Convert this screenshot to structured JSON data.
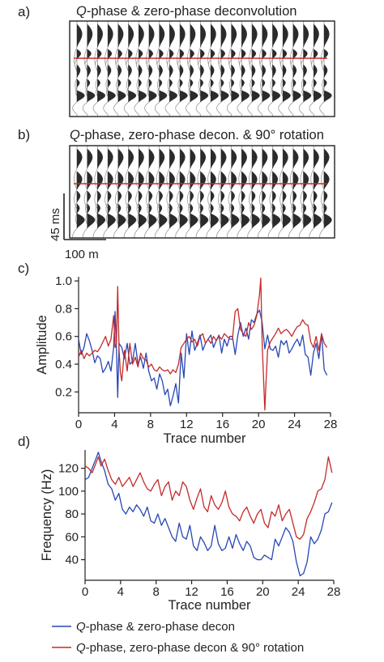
{
  "colors": {
    "blue": "#2747b5",
    "red": "#c42a2a",
    "wiggle": "#2b2b2b",
    "trace_line": "#9a9a9a",
    "frame": "#222222"
  },
  "panel_a": {
    "letter": "a)",
    "title_q": "Q",
    "title_rest": "-phase & zero-phase deconvolution"
  },
  "panel_b": {
    "letter": "b)",
    "title_q": "Q",
    "title_rest": "-phase, zero-phase decon. & 90° rotation",
    "time_scale_label": "45 ms",
    "distance_scale_label": "100 m"
  },
  "legend": {
    "blue_q": "Q",
    "blue_rest": "-phase & zero-phase decon",
    "red_q": "Q",
    "red_rest": "-phase, zero-phase decon & 90° rotation"
  },
  "chart_data": [
    {
      "id": "c",
      "letter": "c)",
      "type": "line",
      "xlabel": "Trace number",
      "ylabel": "Amplitude",
      "xlim": [
        0,
        28
      ],
      "ylim": [
        0.05,
        1.03
      ],
      "xticks": [
        0,
        4,
        8,
        12,
        16,
        20,
        24,
        28
      ],
      "yticks": [
        0.2,
        0.4,
        0.6,
        0.8,
        1.0
      ],
      "ytick_labels": [
        "0.2",
        "0.4",
        "0.6",
        "0.8",
        "1.0"
      ],
      "series": [
        {
          "name": "Q-phase & zero-phase decon",
          "color_key": "blue",
          "x": [
            0,
            0.3,
            0.6,
            0.9,
            1.2,
            1.5,
            1.8,
            2.1,
            2.4,
            2.7,
            3.0,
            3.3,
            3.6,
            3.9,
            4.05,
            4.2,
            4.35,
            4.5,
            4.8,
            5.1,
            5.4,
            5.7,
            6.0,
            6.3,
            6.6,
            6.9,
            7.2,
            7.5,
            7.8,
            8.1,
            8.4,
            8.7,
            9.0,
            9.3,
            9.6,
            9.9,
            10.2,
            10.5,
            10.8,
            11.1,
            11.4,
            11.7,
            12.0,
            12.3,
            12.6,
            12.9,
            13.2,
            13.5,
            13.8,
            14.1,
            14.4,
            14.7,
            15.0,
            15.3,
            15.6,
            15.9,
            16.2,
            16.5,
            16.8,
            17.1,
            17.4,
            17.7,
            18.0,
            18.3,
            18.6,
            18.9,
            19.2,
            19.5,
            19.8,
            20.1,
            20.4,
            20.7,
            21.0,
            21.3,
            21.6,
            21.9,
            22.2,
            22.5,
            22.8,
            23.1,
            23.4,
            23.7,
            24.0,
            24.3,
            24.6,
            24.9,
            25.2,
            25.5,
            25.8,
            26.1,
            26.4,
            26.7,
            27.0,
            27.3,
            27.6
          ],
          "y": [
            0.58,
            0.47,
            0.52,
            0.62,
            0.57,
            0.5,
            0.41,
            0.46,
            0.44,
            0.34,
            0.37,
            0.42,
            0.35,
            0.52,
            0.78,
            0.52,
            0.16,
            0.55,
            0.52,
            0.44,
            0.55,
            0.4,
            0.42,
            0.55,
            0.4,
            0.45,
            0.37,
            0.48,
            0.35,
            0.28,
            0.3,
            0.22,
            0.33,
            0.28,
            0.18,
            0.22,
            0.1,
            0.17,
            0.26,
            0.12,
            0.48,
            0.3,
            0.62,
            0.47,
            0.64,
            0.5,
            0.55,
            0.61,
            0.5,
            0.55,
            0.58,
            0.61,
            0.52,
            0.57,
            0.61,
            0.48,
            0.58,
            0.53,
            0.6,
            0.6,
            0.47,
            0.61,
            0.7,
            0.6,
            0.66,
            0.58,
            0.72,
            0.7,
            0.76,
            0.79,
            0.7,
            0.51,
            0.61,
            0.51,
            0.5,
            0.53,
            0.45,
            0.57,
            0.54,
            0.57,
            0.48,
            0.51,
            0.55,
            0.58,
            0.53,
            0.61,
            0.47,
            0.45,
            0.32,
            0.48,
            0.55,
            0.44,
            0.62,
            0.36,
            0.32
          ]
        },
        {
          "name": "Q-phase, zero-phase decon & 90° rotation",
          "color_key": "red",
          "x": [
            0,
            0.3,
            0.6,
            0.9,
            1.2,
            1.5,
            1.8,
            2.1,
            2.4,
            2.7,
            3.0,
            3.3,
            3.6,
            3.9,
            4.05,
            4.2,
            4.35,
            4.5,
            4.65,
            4.8,
            5.1,
            5.4,
            5.7,
            6.0,
            6.3,
            6.6,
            6.9,
            7.2,
            7.5,
            7.8,
            8.1,
            8.4,
            8.7,
            9.0,
            9.3,
            9.6,
            9.9,
            10.2,
            10.5,
            10.8,
            11.1,
            11.4,
            11.7,
            12.0,
            12.3,
            12.6,
            12.9,
            13.2,
            13.5,
            13.8,
            14.1,
            14.4,
            14.7,
            15.0,
            15.3,
            15.6,
            15.9,
            16.2,
            16.5,
            16.8,
            17.1,
            17.4,
            17.7,
            18.0,
            18.3,
            18.6,
            18.9,
            19.2,
            19.5,
            19.8,
            20.1,
            20.25,
            20.4,
            20.55,
            20.7,
            20.85,
            21.0,
            21.3,
            21.6,
            21.9,
            22.2,
            22.5,
            22.8,
            23.1,
            23.4,
            23.7,
            24.0,
            24.3,
            24.6,
            24.9,
            25.2,
            25.5,
            25.8,
            26.1,
            26.4,
            26.7,
            27.0,
            27.3,
            27.6
          ],
          "y": [
            0.45,
            0.5,
            0.44,
            0.48,
            0.46,
            0.48,
            0.5,
            0.49,
            0.52,
            0.56,
            0.6,
            0.53,
            0.58,
            0.75,
            0.52,
            0.55,
            0.96,
            0.5,
            0.34,
            0.28,
            0.5,
            0.35,
            0.55,
            0.4,
            0.45,
            0.38,
            0.48,
            0.44,
            0.43,
            0.38,
            0.4,
            0.36,
            0.35,
            0.38,
            0.36,
            0.35,
            0.36,
            0.33,
            0.36,
            0.34,
            0.4,
            0.52,
            0.55,
            0.58,
            0.6,
            0.56,
            0.58,
            0.53,
            0.6,
            0.62,
            0.55,
            0.58,
            0.55,
            0.6,
            0.57,
            0.6,
            0.58,
            0.62,
            0.6,
            0.58,
            0.58,
            0.78,
            0.8,
            0.65,
            0.62,
            0.6,
            0.7,
            0.65,
            0.68,
            0.75,
            0.9,
            1.02,
            0.55,
            0.3,
            0.07,
            0.3,
            0.5,
            0.56,
            0.59,
            0.62,
            0.66,
            0.62,
            0.64,
            0.65,
            0.63,
            0.6,
            0.64,
            0.67,
            0.68,
            0.72,
            0.69,
            0.68,
            0.56,
            0.52,
            0.6,
            0.5,
            0.62,
            0.55,
            0.52
          ]
        }
      ]
    },
    {
      "id": "d",
      "letter": "d)",
      "type": "line",
      "xlabel": "Trace number",
      "ylabel": "Frequency (Hz)",
      "xlim": [
        0,
        28
      ],
      "ylim": [
        22,
        136
      ],
      "xticks": [
        0,
        4,
        8,
        12,
        16,
        20,
        24,
        28
      ],
      "yticks": [
        40,
        60,
        80,
        100,
        120
      ],
      "ytick_labels": [
        "40",
        "60",
        "80",
        "100",
        "120"
      ],
      "series": [
        {
          "name": "Q-phase & zero-phase decon",
          "color_key": "blue",
          "x": [
            0,
            0.4,
            0.8,
            1.2,
            1.5,
            1.8,
            2.2,
            2.6,
            3.0,
            3.4,
            3.8,
            4.2,
            4.6,
            5.0,
            5.4,
            5.8,
            6.2,
            6.6,
            7.0,
            7.4,
            7.8,
            8.2,
            8.6,
            9.0,
            9.4,
            9.8,
            10.2,
            10.6,
            11.0,
            11.4,
            11.8,
            12.2,
            12.6,
            13.0,
            13.4,
            13.8,
            14.2,
            14.6,
            15.0,
            15.4,
            15.8,
            16.2,
            16.6,
            17.0,
            17.4,
            17.8,
            18.2,
            18.6,
            19.0,
            19.4,
            19.8,
            20.2,
            20.6,
            21.0,
            21.4,
            21.8,
            22.2,
            22.6,
            23.0,
            23.4,
            23.8,
            24.2,
            24.6,
            25.0,
            25.4,
            25.8,
            26.2,
            26.6,
            27.0,
            27.4,
            27.8
          ],
          "y": [
            110,
            112,
            120,
            128,
            134,
            126,
            118,
            106,
            102,
            92,
            98,
            84,
            80,
            86,
            82,
            88,
            84,
            78,
            86,
            74,
            72,
            80,
            70,
            76,
            68,
            60,
            56,
            72,
            60,
            58,
            70,
            52,
            48,
            60,
            55,
            48,
            52,
            70,
            54,
            48,
            50,
            60,
            50,
            62,
            54,
            48,
            56,
            52,
            42,
            40,
            40,
            44,
            42,
            40,
            58,
            52,
            60,
            68,
            64,
            56,
            38,
            26,
            28,
            38,
            60,
            54,
            58,
            66,
            80,
            82,
            90
          ]
        },
        {
          "name": "Q-phase, zero-phase decon & 90° rotation",
          "color_key": "red",
          "x": [
            0,
            0.4,
            0.8,
            1.2,
            1.5,
            1.8,
            2.2,
            2.6,
            3.0,
            3.4,
            3.8,
            4.2,
            4.6,
            5.0,
            5.4,
            5.8,
            6.2,
            6.6,
            7.0,
            7.4,
            7.8,
            8.2,
            8.6,
            9.0,
            9.4,
            9.8,
            10.2,
            10.6,
            11.0,
            11.4,
            11.8,
            12.2,
            12.6,
            13.0,
            13.4,
            13.8,
            14.2,
            14.6,
            15.0,
            15.4,
            15.8,
            16.2,
            16.6,
            17.0,
            17.4,
            17.8,
            18.2,
            18.6,
            19.0,
            19.4,
            19.8,
            20.2,
            20.6,
            21.0,
            21.4,
            21.8,
            22.2,
            22.6,
            23.0,
            23.4,
            23.8,
            24.2,
            24.6,
            25.0,
            25.4,
            25.8,
            26.2,
            26.6,
            27.0,
            27.4,
            27.8
          ],
          "y": [
            122,
            120,
            116,
            124,
            130,
            122,
            128,
            118,
            110,
            106,
            112,
            104,
            108,
            112,
            104,
            110,
            116,
            108,
            102,
            100,
            106,
            110,
            96,
            104,
            108,
            92,
            100,
            96,
            108,
            104,
            92,
            84,
            94,
            102,
            86,
            82,
            96,
            88,
            84,
            90,
            100,
            86,
            80,
            78,
            74,
            82,
            86,
            78,
            72,
            80,
            84,
            72,
            68,
            82,
            78,
            88,
            74,
            80,
            84,
            72,
            60,
            58,
            62,
            76,
            82,
            90,
            100,
            102,
            110,
            130,
            116
          ]
        }
      ]
    }
  ]
}
